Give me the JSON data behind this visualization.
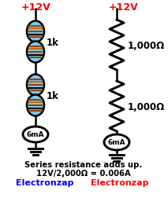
{
  "bg_color": "#ffffff",
  "left_voltage_label": "+12V",
  "right_voltage_label": "+12V",
  "left_r1_label": "1k",
  "left_r2_label": "1k",
  "right_r1_label": "1,000Ω",
  "right_r2_label": "1,000Ω",
  "ammeter_label": "6mA",
  "text_line1": "Series resistance adds up.",
  "text_line2": "12V/2,000Ω = 0.006A",
  "brand_blue": "Electronzap",
  "brand_red": "Electronzap",
  "color_red": "#ff0000",
  "color_blue": "#0000ff",
  "color_black": "#000000",
  "color_light_blue": "#7ec8e3",
  "color_brown": "#8B4513",
  "color_orange": "#cc6600",
  "color_white": "#ffffff",
  "lw": 1.8
}
